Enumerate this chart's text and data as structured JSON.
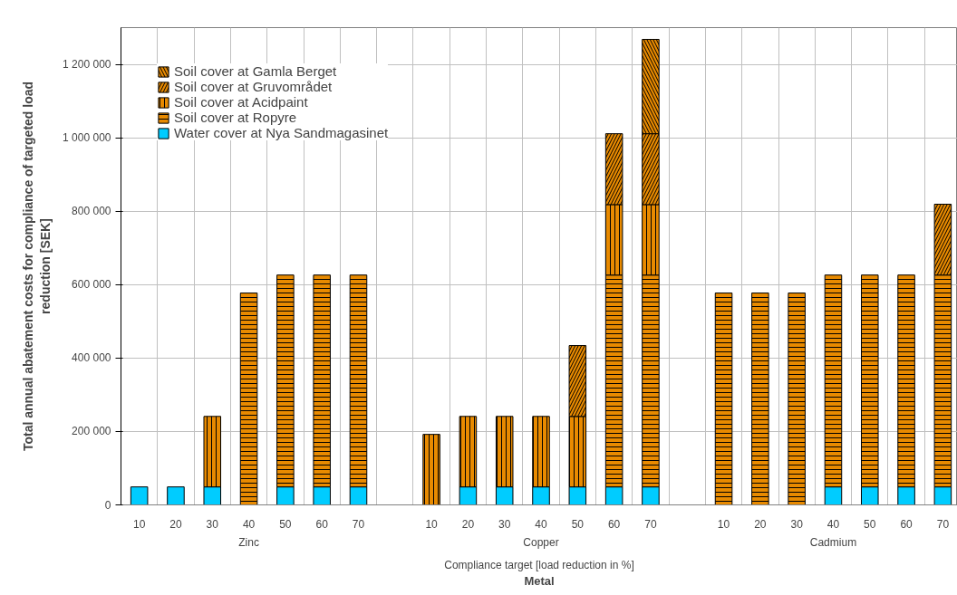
{
  "chart_data": {
    "type": "bar",
    "stacked": true,
    "xlabel": "Metal",
    "ylabel": "Total annual abatement costs for compliance of targeted load reduction [SEK]",
    "annotations": [
      "Zinc",
      "Copper",
      "Cadmium",
      "Compliance target [load reduction in %]"
    ],
    "categories": [
      "10",
      "20",
      "30",
      "40",
      "50",
      "60",
      "70",
      "10",
      "20",
      "30",
      "40",
      "50",
      "60",
      "70",
      "10",
      "20",
      "30",
      "40",
      "50",
      "60",
      "70"
    ],
    "series": [
      {
        "name": "Water cover at Nya Sandmagasinet",
        "color": "#00ccff",
        "values": [
          49000,
          49000,
          49000,
          null,
          49000,
          49000,
          49000,
          null,
          49000,
          49000,
          49000,
          49000,
          49000,
          49000,
          null,
          null,
          null,
          49000,
          49000,
          49000,
          49000
        ]
      },
      {
        "name": "Soil cover at Ropyre",
        "color": "#e88a00",
        "values": [
          null,
          null,
          null,
          577000,
          577000,
          577000,
          577000,
          null,
          null,
          null,
          null,
          null,
          577000,
          577000,
          577000,
          577000,
          577000,
          577000,
          577000,
          577000,
          577000
        ]
      },
      {
        "name": "Soil cover at Acidpaint",
        "color": "#e88a00",
        "values": [
          null,
          null,
          192000,
          null,
          null,
          null,
          null,
          192000,
          192000,
          192000,
          192000,
          192000,
          192000,
          192000,
          null,
          null,
          null,
          null,
          null,
          null,
          null
        ]
      },
      {
        "name": "Soil cover at Gruvområdet",
        "color": "#e88a00",
        "values": [
          null,
          null,
          null,
          null,
          null,
          null,
          null,
          null,
          null,
          null,
          null,
          193000,
          193000,
          193000,
          null,
          null,
          null,
          null,
          null,
          null,
          193000
        ]
      },
      {
        "name": "Soil cover at Gamla Berget",
        "color": "#e88a00",
        "values": [
          null,
          null,
          null,
          null,
          null,
          null,
          null,
          null,
          null,
          null,
          null,
          null,
          null,
          257000,
          null,
          null,
          null,
          null,
          null,
          null,
          null
        ]
      }
    ],
    "ylim": [
      0,
      1300000
    ],
    "yticks": [
      0,
      {
        "value": 200000,
        "label": "200 000"
      },
      {
        "value": 400000,
        "label": "400 000"
      },
      {
        "value": 600000,
        "label": "600 000"
      },
      {
        "value": 800000,
        "label": "800 000"
      },
      {
        "value": 1000000,
        "label": "1 000 000"
      },
      {
        "value": 1200000,
        "label": "1 200 000"
      }
    ],
    "grid": true,
    "legend": "top left"
  }
}
